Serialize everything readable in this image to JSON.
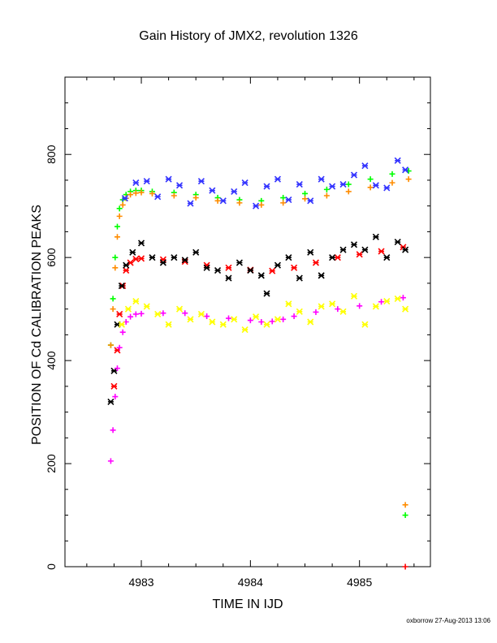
{
  "chart_data": {
    "type": "scatter",
    "title": "Gain History of JMX2, revolution 1326",
    "xlabel": "TIME IN IJD",
    "ylabel": "POSITION OF Cd CALIBRATION PEAKS",
    "xlim": [
      4982.3,
      4985.65
    ],
    "ylim": [
      0,
      950
    ],
    "x_ticks": [
      4983,
      4984,
      4985
    ],
    "x_tick_labels": [
      "4983",
      "4984",
      "4985"
    ],
    "y_ticks": [
      0,
      200,
      400,
      600,
      800
    ],
    "y_tick_labels": [
      "0",
      "200",
      "400",
      "600",
      "800"
    ],
    "grid": false,
    "legend": "none",
    "series": [
      {
        "color": "#00ff00",
        "marker": "plus",
        "x": [
          4982.72,
          4982.74,
          4982.76,
          4982.78,
          4982.8,
          4982.83,
          4982.86,
          4982.9,
          4982.95,
          4983.0,
          4983.1,
          4983.3,
          4983.5,
          4983.7,
          4983.9,
          4984.1,
          4984.3,
          4984.5,
          4984.7,
          4984.9,
          4985.1,
          4985.3,
          4985.45
        ],
        "y": [
          430,
          520,
          600,
          660,
          695,
          712,
          722,
          728,
          730,
          730,
          728,
          726,
          722,
          716,
          712,
          710,
          716,
          724,
          732,
          742,
          752,
          762,
          768
        ]
      },
      {
        "color": "#ff8c00",
        "marker": "plus",
        "x": [
          4982.72,
          4982.74,
          4982.76,
          4982.78,
          4982.8,
          4982.83,
          4982.86,
          4982.9,
          4982.95,
          4983.0,
          4983.1,
          4983.3,
          4983.5,
          4983.7,
          4983.9,
          4984.1,
          4984.3,
          4984.5,
          4984.7,
          4984.9,
          4985.1,
          4985.3,
          4985.45
        ],
        "y": [
          430,
          500,
          580,
          640,
          680,
          702,
          715,
          722,
          725,
          726,
          724,
          720,
          716,
          710,
          706,
          702,
          706,
          714,
          720,
          728,
          736,
          745,
          752
        ]
      },
      {
        "color": "#3333ff",
        "marker": "star",
        "x": [
          4982.85,
          4982.95,
          4983.05,
          4983.15,
          4983.25,
          4983.35,
          4983.45,
          4983.55,
          4983.65,
          4983.75,
          4983.85,
          4983.95,
          4984.05,
          4984.15,
          4984.25,
          4984.35,
          4984.45,
          4984.55,
          4984.65,
          4984.75,
          4984.85,
          4984.95,
          4985.05,
          4985.15,
          4985.25,
          4985.35,
          4985.42
        ],
        "y": [
          715,
          745,
          748,
          718,
          752,
          740,
          705,
          748,
          730,
          710,
          728,
          745,
          700,
          738,
          752,
          712,
          742,
          710,
          752,
          738,
          742,
          760,
          778,
          740,
          735,
          788,
          770
        ]
      },
      {
        "color": "#ff0000",
        "marker": "star",
        "x": [
          4982.75,
          4982.78,
          4982.8,
          4982.83,
          4982.86,
          4982.9,
          4982.95,
          4983.0,
          4983.2,
          4983.4,
          4983.6,
          4983.8,
          4984.0,
          4984.2,
          4984.4,
          4984.6,
          4984.8,
          4985.0,
          4985.2,
          4985.4
        ],
        "y": [
          350,
          420,
          490,
          545,
          575,
          590,
          597,
          598,
          596,
          592,
          585,
          580,
          576,
          574,
          580,
          590,
          600,
          606,
          612,
          620
        ]
      },
      {
        "color": "#000000",
        "marker": "star",
        "x": [
          4982.72,
          4982.75,
          4982.78,
          4982.82,
          4982.86,
          4982.92,
          4983.0,
          4983.1,
          4983.2,
          4983.3,
          4983.4,
          4983.5,
          4983.6,
          4983.7,
          4983.8,
          4983.9,
          4984.0,
          4984.1,
          4984.15,
          4984.25,
          4984.35,
          4984.45,
          4984.55,
          4984.65,
          4984.75,
          4984.85,
          4984.95,
          4985.05,
          4985.15,
          4985.25,
          4985.35,
          4985.42
        ],
        "y": [
          320,
          380,
          470,
          545,
          585,
          610,
          628,
          600,
          590,
          600,
          595,
          610,
          580,
          575,
          560,
          590,
          575,
          565,
          530,
          585,
          600,
          560,
          610,
          565,
          600,
          615,
          625,
          615,
          640,
          600,
          630,
          615
        ]
      },
      {
        "color": "#ff00ff",
        "marker": "plus",
        "x": [
          4982.72,
          4982.74,
          4982.76,
          4982.78,
          4982.8,
          4982.83,
          4982.86,
          4982.9,
          4982.95,
          4983.0,
          4983.2,
          4983.4,
          4983.6,
          4983.8,
          4984.0,
          4984.1,
          4984.2,
          4984.3,
          4984.4,
          4984.6,
          4984.8,
          4985.0,
          4985.2,
          4985.4
        ],
        "y": [
          205,
          265,
          330,
          385,
          425,
          455,
          475,
          485,
          490,
          491,
          492,
          492,
          486,
          482,
          478,
          475,
          476,
          480,
          486,
          494,
          500,
          506,
          514,
          522
        ]
      },
      {
        "color": "#ffff00",
        "marker": "star",
        "x": [
          4982.82,
          4982.88,
          4982.95,
          4983.05,
          4983.15,
          4983.25,
          4983.35,
          4983.45,
          4983.55,
          4983.65,
          4983.75,
          4983.85,
          4983.95,
          4984.05,
          4984.15,
          4984.25,
          4984.35,
          4984.45,
          4984.55,
          4984.65,
          4984.75,
          4984.85,
          4984.95,
          4985.05,
          4985.15,
          4985.25,
          4985.35,
          4985.42
        ],
        "y": [
          470,
          500,
          515,
          505,
          490,
          470,
          500,
          480,
          490,
          475,
          470,
          480,
          460,
          485,
          470,
          480,
          510,
          495,
          475,
          505,
          510,
          495,
          525,
          470,
          505,
          515,
          520,
          500
        ]
      },
      {
        "color": "#ff8c00",
        "marker": "plus",
        "x": [
          4985.42
        ],
        "y": [
          120
        ]
      },
      {
        "color": "#00ff00",
        "marker": "plus",
        "x": [
          4985.42
        ],
        "y": [
          100
        ]
      },
      {
        "color": "#ff0000",
        "marker": "plus",
        "x": [
          4985.42
        ],
        "y": [
          0
        ]
      }
    ]
  },
  "footer": "oxborrow 27-Aug-2013 13:06"
}
